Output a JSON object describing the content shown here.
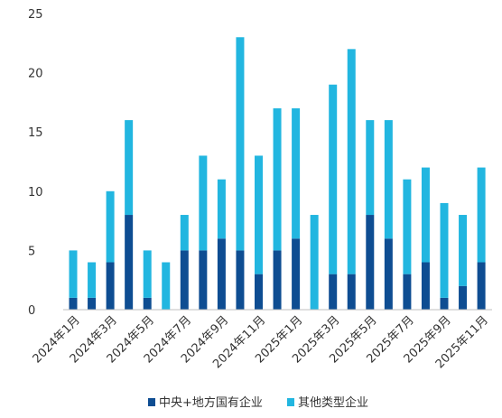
{
  "chart_data": {
    "type": "bar",
    "stacked": true,
    "categories": [
      "2024年1月",
      "2024年2月",
      "2024年3月",
      "2024年4月",
      "2024年5月",
      "2024年6月",
      "2024年7月",
      "2024年8月",
      "2024年9月",
      "2024年10月",
      "2024年11月",
      "2024年12月",
      "2025年1月",
      "2025年2月",
      "2025年3月",
      "2025年4月",
      "2025年5月",
      "2025年6月",
      "2025年7月",
      "2025年8月",
      "2025年9月",
      "2025年10月",
      "2025年11月"
    ],
    "xtick_labels": [
      "2024年1月",
      "2024年3月",
      "2024年5月",
      "2024年7月",
      "2024年9月",
      "2024年11月",
      "2025年1月",
      "2025年3月",
      "2025年5月",
      "2025年7月",
      "2025年9月",
      "2025年11月"
    ],
    "series": [
      {
        "name": "中央+地方国有企业",
        "color": "#0e4d92",
        "values": [
          1,
          1,
          4,
          8,
          1,
          0,
          5,
          5,
          6,
          5,
          3,
          5,
          6,
          0,
          3,
          3,
          8,
          6,
          3,
          4,
          1,
          2,
          4
        ]
      },
      {
        "name": "其他类型企业",
        "color": "#22b6e0",
        "values": [
          4,
          3,
          6,
          8,
          4,
          4,
          3,
          8,
          5,
          18,
          10,
          12,
          11,
          8,
          16,
          19,
          8,
          10,
          8,
          8,
          8,
          6,
          8
        ]
      }
    ],
    "ylim": [
      0,
      25
    ],
    "yticks": [
      0,
      5,
      10,
      15,
      20,
      25
    ],
    "grid": false,
    "legend_position": "bottom",
    "title": "",
    "xlabel": "",
    "ylabel": ""
  }
}
